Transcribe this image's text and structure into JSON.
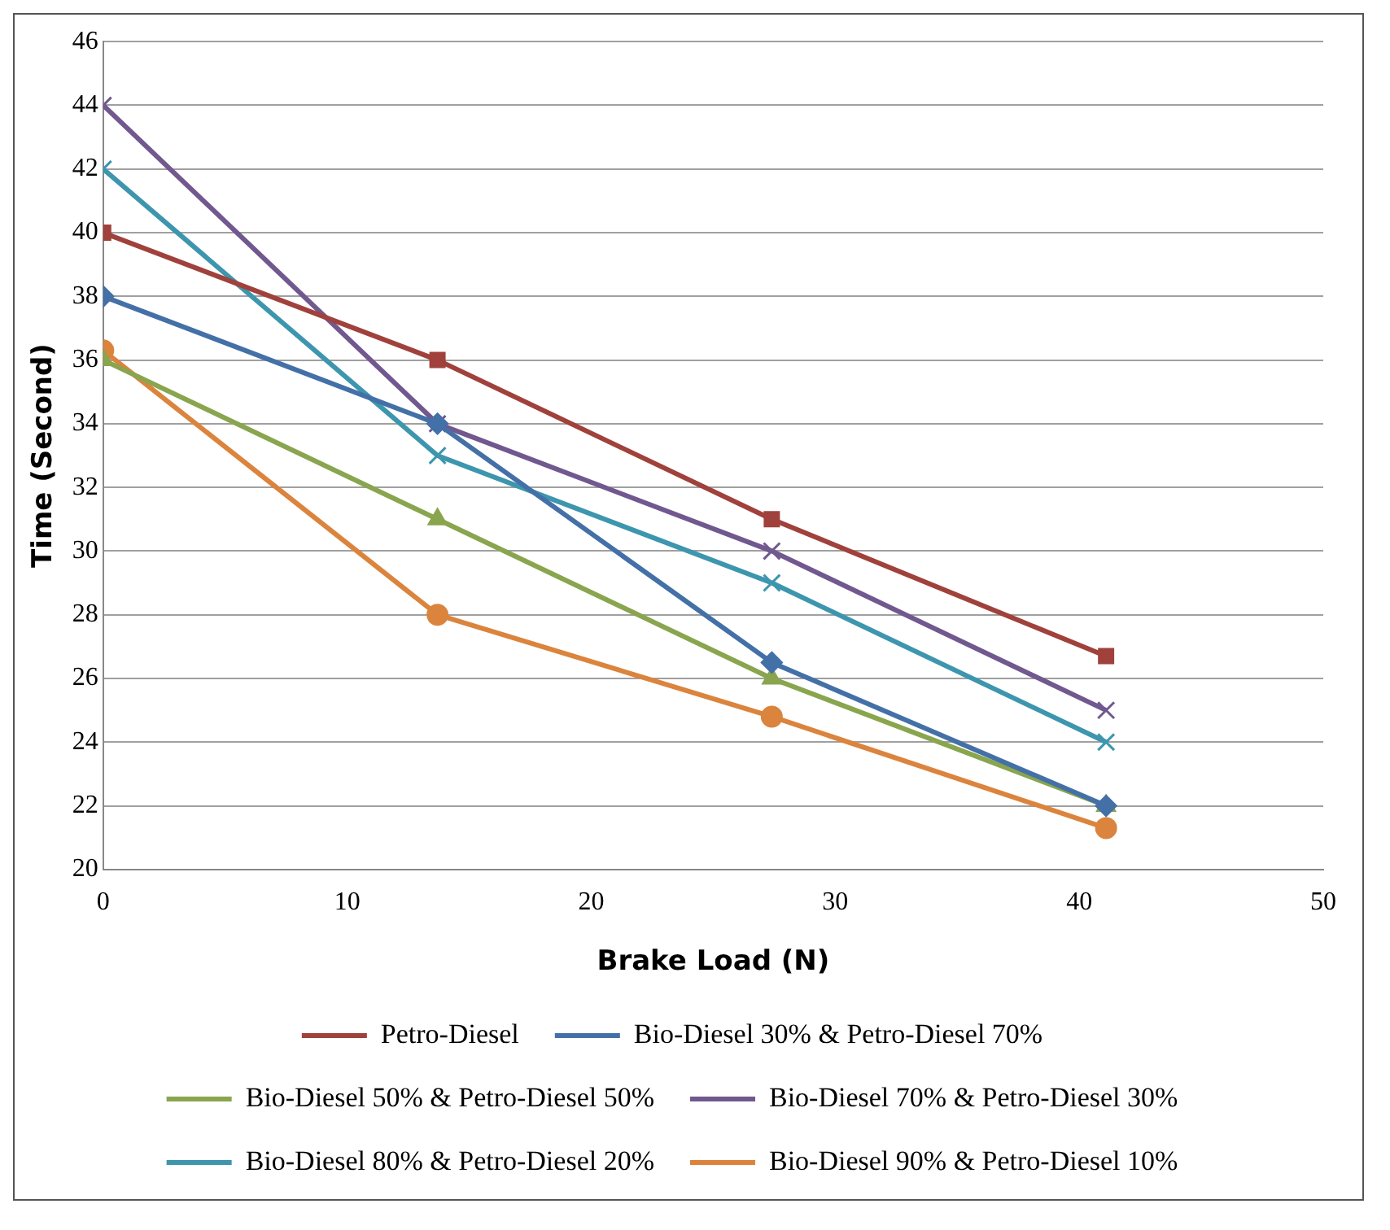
{
  "chart_data": {
    "type": "line",
    "xlabel": "Brake Load (N)",
    "ylabel": "Time (Second)",
    "x": [
      0,
      13.7,
      27.4,
      41.1
    ],
    "xlim": [
      0,
      50
    ],
    "xticks": [
      0,
      10,
      20,
      30,
      40,
      50
    ],
    "ylim": [
      20,
      46
    ],
    "yticks": [
      20,
      22,
      24,
      26,
      28,
      30,
      32,
      34,
      36,
      38,
      40,
      42,
      44,
      46
    ],
    "grid": "y",
    "legend": "bottom",
    "series": [
      {
        "name": "Petro-Diesel",
        "color": "#a0413c",
        "marker": "square",
        "values": [
          40,
          36,
          31,
          26.7
        ]
      },
      {
        "name": "Bio-Diesel 30% & Petro-Diesel 70%",
        "color": "#4470a8",
        "marker": "diamond",
        "values": [
          38,
          34,
          26.5,
          22
        ]
      },
      {
        "name": "Bio-Diesel 50% & Petro-Diesel 50%",
        "color": "#89a54e",
        "marker": "triangle",
        "values": [
          36,
          31,
          26,
          22
        ]
      },
      {
        "name": "Bio-Diesel 70% & Petro-Diesel 30%",
        "color": "#71588f",
        "marker": "cross",
        "values": [
          44,
          34,
          30,
          25
        ]
      },
      {
        "name": "Bio-Diesel 80% & Petro-Diesel 20%",
        "color": "#3d96ae",
        "marker": "cross",
        "values": [
          42,
          33,
          29,
          24
        ]
      },
      {
        "name": "Bio-Diesel 90% & Petro-Diesel 10%",
        "color": "#db843d",
        "marker": "circle",
        "values": [
          36.3,
          28,
          24.8,
          21.3
        ]
      }
    ]
  }
}
